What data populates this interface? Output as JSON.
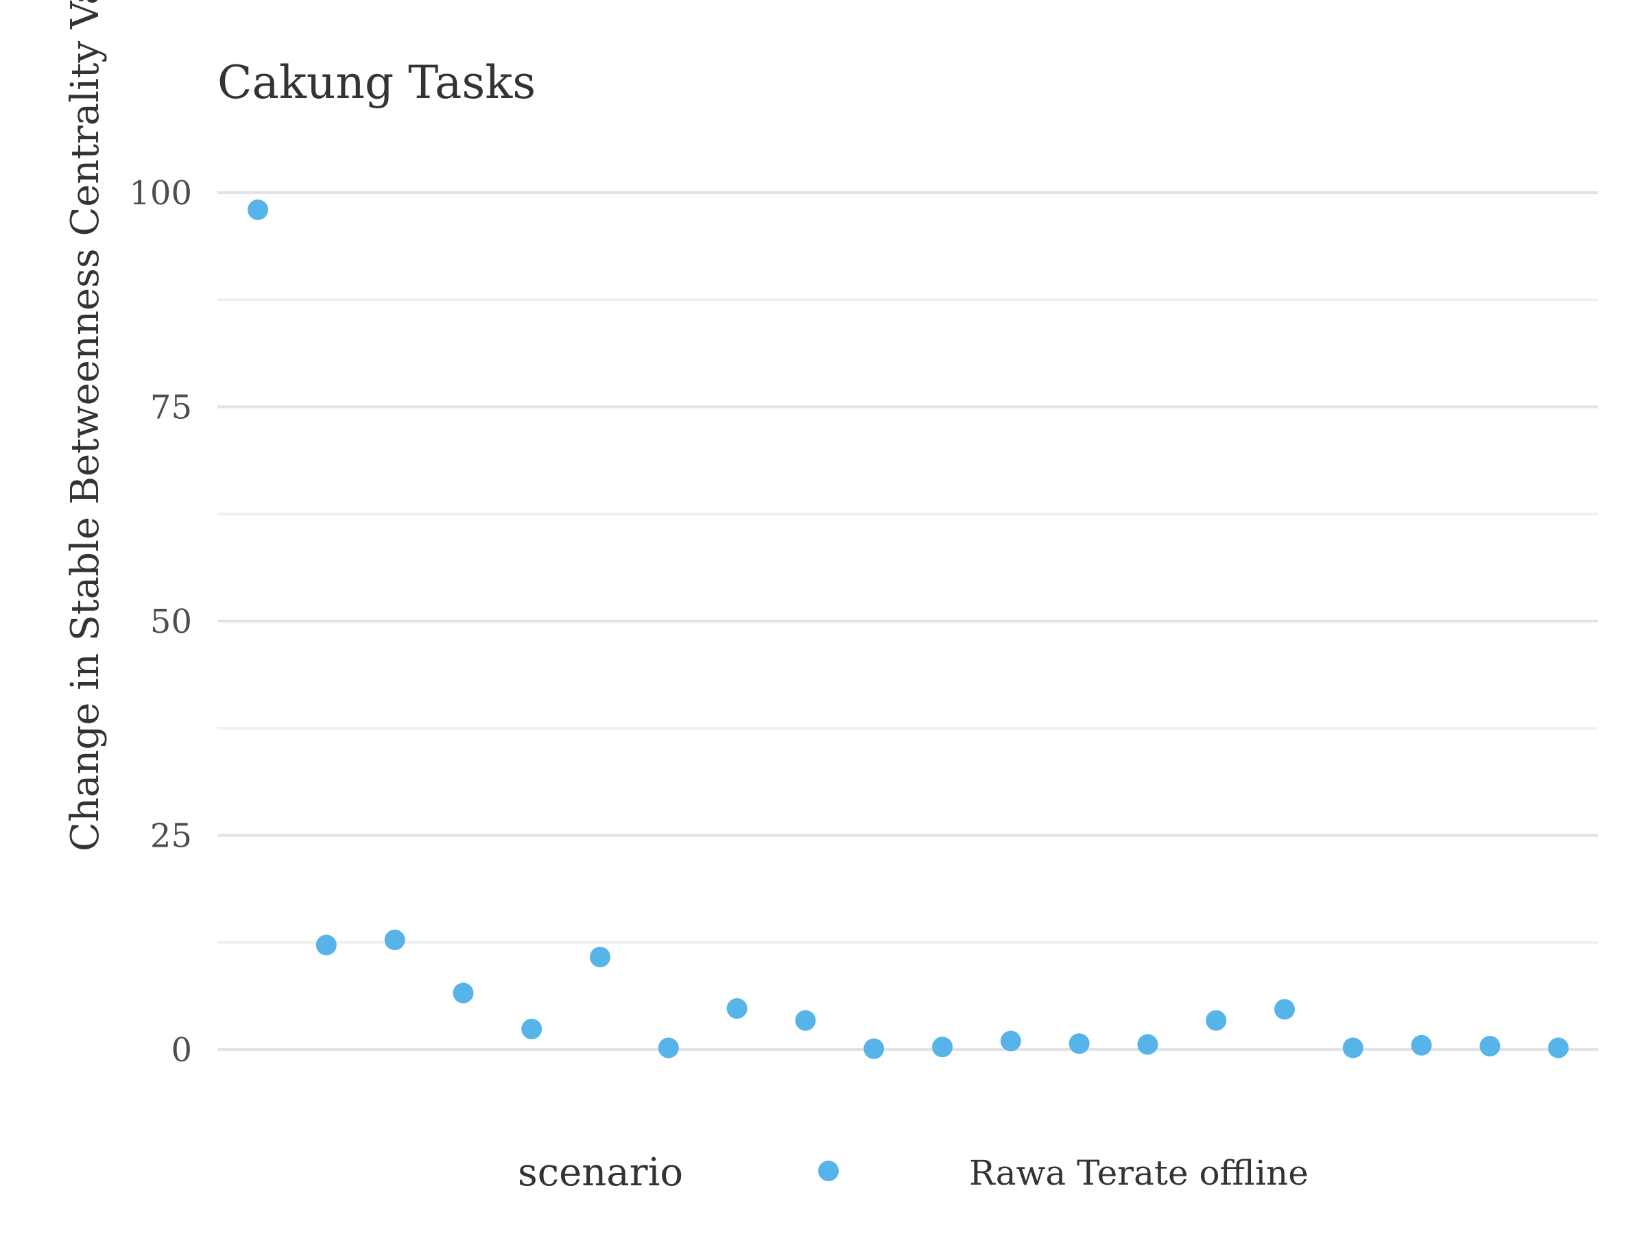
{
  "chart_data": {
    "type": "scatter",
    "title": "Cakung Tasks",
    "xlabel": "",
    "ylabel": "Change in Stable Betweenness Centrality Value",
    "ylim": [
      -7.5,
      102
    ],
    "yticks": [
      0,
      25,
      50,
      75,
      100
    ],
    "ytick_labels": [
      "0",
      "25",
      "50",
      "75",
      "100"
    ],
    "grid": true,
    "x_tick_labels_shown": false,
    "legend": {
      "title": "scenario",
      "placement": "bottom"
    },
    "series": [
      {
        "name": "Rawa Terate offline",
        "color": "#56b4e9",
        "x": [
          1,
          2,
          3,
          4,
          5,
          6,
          7,
          8,
          9,
          10,
          11,
          12,
          13,
          14,
          15,
          16,
          17,
          18,
          19,
          20
        ],
        "y": [
          98,
          12.2,
          12.8,
          6.6,
          2.4,
          10.8,
          0.2,
          4.8,
          3.4,
          0.1,
          0.3,
          1.0,
          0.7,
          0.6,
          3.4,
          4.7,
          0.2,
          0.5,
          0.4,
          0.2
        ]
      }
    ]
  }
}
